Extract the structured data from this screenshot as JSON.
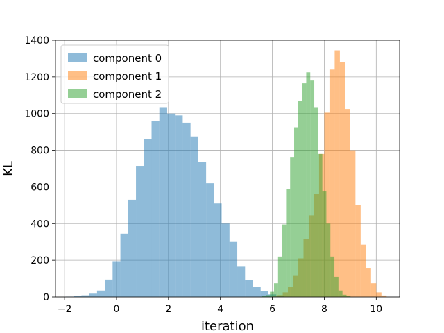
{
  "chart_data": {
    "type": "histogram",
    "xlabel": "iteration",
    "ylabel": "KL",
    "xlim": [
      -2.35,
      10.9
    ],
    "ylim": [
      0,
      1400
    ],
    "xticks": [
      -2,
      0,
      2,
      4,
      6,
      8,
      10
    ],
    "yticks": [
      0,
      200,
      400,
      600,
      800,
      1000,
      1200,
      1400
    ],
    "grid": true,
    "legend_position": "top-left",
    "series": [
      {
        "name": "component 0",
        "color": "#1f77b4",
        "alpha": 0.5,
        "bin_start": -1.95,
        "bin_width": 0.3,
        "counts": [
          2,
          5,
          9,
          18,
          35,
          95,
          195,
          345,
          530,
          715,
          860,
          960,
          1035,
          1000,
          990,
          950,
          875,
          735,
          620,
          510,
          400,
          300,
          165,
          92,
          55,
          32,
          14,
          6,
          2
        ]
      },
      {
        "name": "component 1",
        "color": "#ff7f0e",
        "alpha": 0.5,
        "bin_start": 6.0,
        "bin_width": 0.2,
        "counts": [
          3,
          10,
          25,
          55,
          115,
          210,
          315,
          445,
          560,
          780,
          1005,
          1240,
          1345,
          1280,
          1025,
          800,
          500,
          285,
          155,
          75,
          25,
          8
        ]
      },
      {
        "name": "component 2",
        "color": "#2ca02c",
        "alpha": 0.5,
        "bin_start": 5.6,
        "bin_width": 0.155,
        "counts": [
          4,
          10,
          28,
          75,
          220,
          395,
          590,
          760,
          925,
          1070,
          1165,
          1225,
          1180,
          1035,
          780,
          575,
          400,
          220,
          110,
          35,
          12,
          4
        ]
      }
    ]
  }
}
